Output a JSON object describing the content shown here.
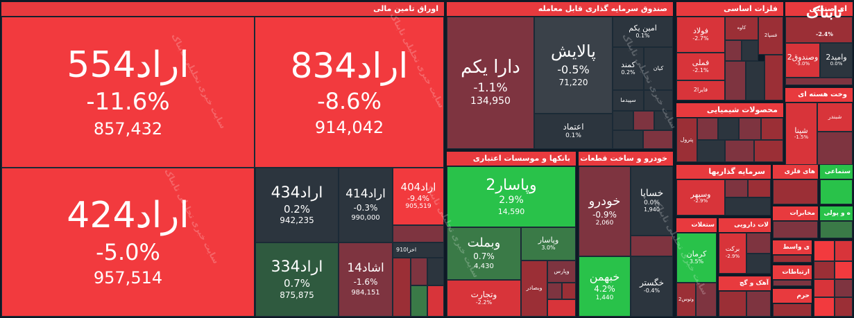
{
  "sectors": {
    "bonds": "اوراق تامین مالی",
    "funds": "صندوق سرمایه گذاری قابل معامله",
    "metals": "فلزات اساسی",
    "industrial": "ای صنعتی",
    "nuclear": "وخت هسته ای",
    "chemical": "محصولات شیمیایی",
    "banks": "بانکها و موسسات اعتباری",
    "auto": "خودرو و ساخت قطعات",
    "investment": "سرمایه گذاریها",
    "metal_products": "های فلزی",
    "social": "ستماعی",
    "telecom": "مخابرات",
    "polymer": "ه و پولی",
    "pharma": "لات دارویی",
    "cement": "ستغلات",
    "wasat": "ی واسط",
    "ertebatat": "ارتباطات",
    "ahak": "آهک و گچ",
    "haram": "حرم"
  },
  "watermark": "سایت خبری تحلیلی تابناک",
  "tiles": {
    "arad554": {
      "sym": "اراد554",
      "pct": "-11.6%",
      "val": "857,432"
    },
    "arad834": {
      "sym": "اراد834",
      "pct": "-8.6%",
      "val": "914,042"
    },
    "arad424": {
      "sym": "اراد424",
      "pct": "-5.0%",
      "val": "957,514"
    },
    "arad434": {
      "sym": "اراد434",
      "pct": "0.2%",
      "val": "942,235"
    },
    "arad414": {
      "sym": "اراد414",
      "pct": "-0.3%",
      "val": "990,000"
    },
    "arad404": {
      "sym": "اراد404",
      "pct": "-9.4%",
      "val": "905,519"
    },
    "arad334": {
      "sym": "اراد334",
      "pct": "0.7%",
      "val": "875,875"
    },
    "eshad14": {
      "sym": "اشاد14",
      "pct": "-1.6%",
      "val": "984,151"
    },
    "ekhza910": {
      "sym": "اخزا910"
    },
    "darayekom": {
      "sym": "دارا یکم",
      "pct": "-1.1%",
      "val": "134,950"
    },
    "palayesh": {
      "sym": "پالایش",
      "pct": "-0.5%",
      "val": "71,220"
    },
    "aminyekom": {
      "sym": "امین یکم",
      "pct": "0.1%"
    },
    "kamand": {
      "sym": "کمند",
      "pct": "0.2%"
    },
    "kian": {
      "sym": "کیان"
    },
    "sepidma": {
      "sym": "سپیدما"
    },
    "etemad": {
      "sym": "اعتماد",
      "pct": "0.1%"
    },
    "foolad": {
      "sym": "فولاد",
      "pct": "-2.7%"
    },
    "kaveh": {
      "sym": "کاوه"
    },
    "fesepahan2": {
      "sym": "فسپا2"
    },
    "fameli": {
      "sym": "فملی",
      "pct": "-2.1%"
    },
    "fayra2": {
      "sym": "فایرا2"
    },
    "vamid2": {
      "sym": "وامید2",
      "pct": "0.0%"
    },
    "sandoq2": {
      "sym": "وصندوق2",
      "pct": "-3.0%"
    },
    "tabnak_pct": {
      "pct": "-2.4%"
    },
    "shabandar": {
      "sym": "شبندر"
    },
    "shepna": {
      "sym": "شپنا",
      "pct": "-1.5%"
    },
    "petrol": {
      "sym": "پترول"
    },
    "vpasar2": {
      "sym": "وپاسار2",
      "pct": "2.9%",
      "val": "14,590"
    },
    "vbmellat": {
      "sym": "وبملت",
      "pct": "0.7%",
      "val": "4,430"
    },
    "vpasar": {
      "sym": "وپاسار",
      "pct": "3.0%"
    },
    "vtejarat": {
      "sym": "وتجارت",
      "pct": "-2.2%"
    },
    "vpars": {
      "sym": "وپارس"
    },
    "vsadr": {
      "sym": "وبصادر"
    },
    "vkarafarin": {
      "sym": "وکار"
    },
    "khodro": {
      "sym": "خودرو",
      "pct": "-0.9%",
      "val": "2,060"
    },
    "khsapa": {
      "sym": "خساپا",
      "pct": "0.0%",
      "val": "1,940"
    },
    "khbahman": {
      "sym": "خبهمن",
      "pct": "4.2%",
      "val": "1,440"
    },
    "khgostar": {
      "sym": "خگستر",
      "pct": "-0.4%"
    },
    "vsepahr": {
      "sym": "وسپهر",
      "pct": "-2.9%"
    },
    "kerman": {
      "sym": "کرمان",
      "pct": "3.5%"
    },
    "barkat": {
      "sym": "برکت",
      "pct": "-2.9%"
    },
    "vtoos2": {
      "sym": "وتوس2"
    }
  }
}
